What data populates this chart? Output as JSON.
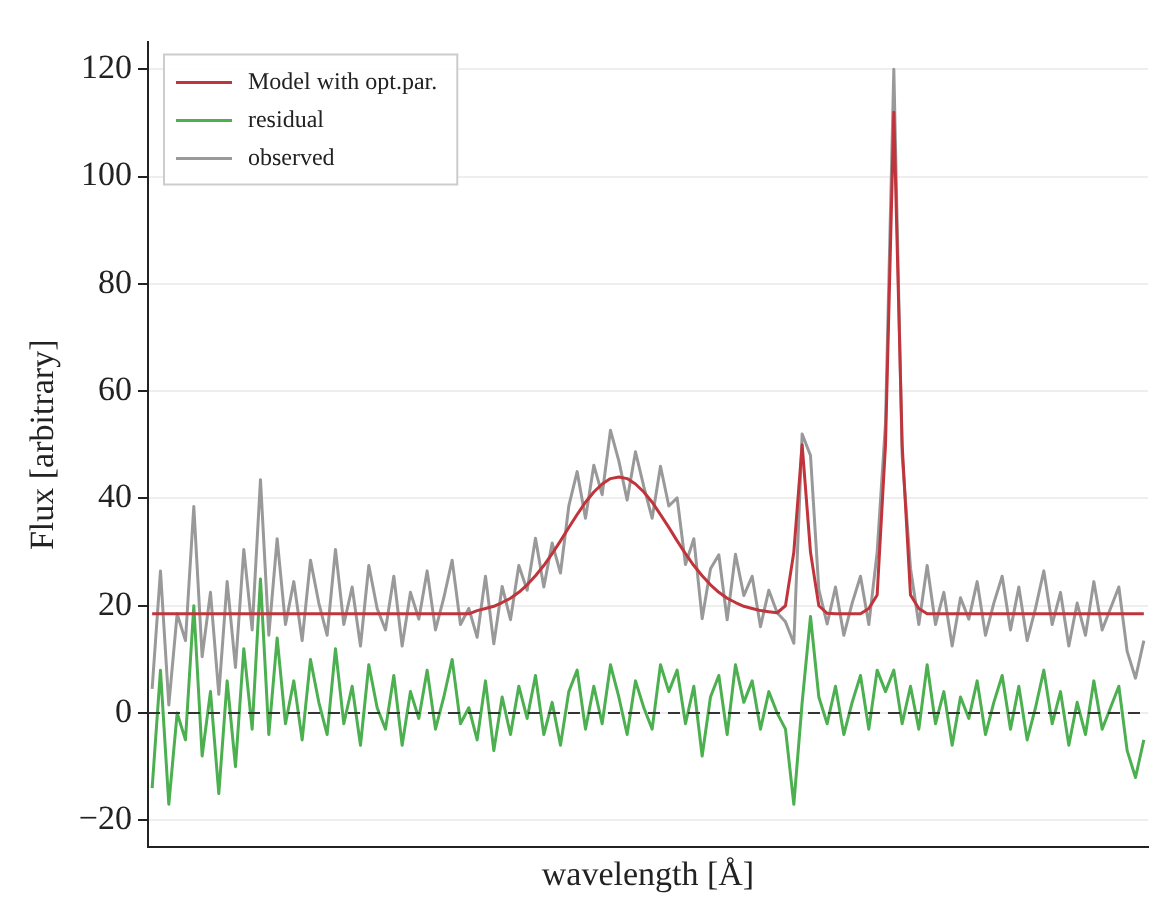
{
  "chart_data": {
    "type": "line",
    "xlabel": "wavelength [Å]",
    "ylabel": "Flux [arbitrary]",
    "categories": [
      null,
      null,
      null,
      null,
      null,
      null,
      null,
      null,
      null,
      null,
      null,
      null,
      null,
      null,
      null,
      null,
      null,
      null,
      null,
      null,
      null,
      null,
      null,
      null,
      null,
      null,
      null,
      null,
      null,
      null,
      null,
      null,
      null,
      null,
      null,
      null,
      null,
      null,
      null,
      null,
      null,
      null,
      null,
      null,
      null,
      null,
      null,
      null,
      null,
      null,
      null,
      null,
      null,
      null,
      null,
      null,
      null,
      null,
      null,
      null,
      null,
      null,
      null,
      null,
      null,
      null,
      null,
      null,
      null,
      null,
      null,
      null,
      null,
      null,
      null,
      null,
      null,
      null,
      null,
      null,
      null,
      null,
      null,
      null,
      null,
      null,
      null,
      null,
      null,
      null,
      null,
      null,
      null,
      null,
      null,
      null,
      null,
      null,
      null,
      null,
      null,
      null,
      null,
      null,
      null,
      null,
      null,
      null,
      null,
      null,
      null,
      null,
      null,
      null,
      null,
      null,
      null,
      null,
      null,
      null
    ],
    "series": [
      {
        "name": "Model with opt.par.",
        "color": "#c0343c",
        "values": [
          18.5,
          18.5,
          18.5,
          18.5,
          18.5,
          18.5,
          18.5,
          18.5,
          18.5,
          18.5,
          18.5,
          18.5,
          18.5,
          18.5,
          18.5,
          18.5,
          18.5,
          18.5,
          18.5,
          18.5,
          18.5,
          18.5,
          18.5,
          18.5,
          18.5,
          18.5,
          18.5,
          18.5,
          18.5,
          18.5,
          18.5,
          18.5,
          18.5,
          18.5,
          18.5,
          18.5,
          18.5,
          18.5,
          18.5,
          19.1,
          19.5,
          19.9,
          20.6,
          21.4,
          22.5,
          23.9,
          25.6,
          27.5,
          29.7,
          32.1,
          34.6,
          37.0,
          39.3,
          41.2,
          42.7,
          43.7,
          44,
          43.7,
          42.7,
          41.2,
          39.3,
          37.0,
          34.6,
          32.1,
          29.7,
          27.5,
          25.6,
          23.9,
          22.5,
          21.4,
          20.6,
          19.9,
          19.5,
          19.1,
          18.9,
          18.7,
          20,
          30,
          50,
          30,
          20,
          18.6,
          18.5,
          18.5,
          18.5,
          18.5,
          19.5,
          22,
          50,
          112,
          50,
          22,
          19.5,
          18.5,
          18.5,
          18.5,
          18.5,
          18.5,
          18.5,
          18.5,
          18.5,
          18.5,
          18.5,
          18.5,
          18.5,
          18.5,
          18.5,
          18.5,
          18.5,
          18.5,
          18.5,
          18.5,
          18.5,
          18.5,
          18.5,
          18.5,
          18.5,
          18.5,
          18.5,
          18.5
        ]
      },
      {
        "name": "residual",
        "color": "#4caf50",
        "values": [
          -14,
          8,
          -17,
          0,
          -5,
          20,
          -8,
          4,
          -15,
          6,
          -10,
          12,
          -3,
          25,
          -4,
          14,
          -2,
          6,
          -5,
          10,
          2,
          -4,
          12,
          -2,
          5,
          -6,
          9,
          1,
          -3,
          7,
          -6,
          4,
          -1,
          8,
          -3,
          3,
          10,
          -2,
          1,
          -5,
          6,
          -7,
          3,
          -4,
          5,
          -1,
          7,
          -4,
          2,
          -6,
          4,
          8,
          -3,
          5,
          -2,
          9,
          3,
          -4,
          6,
          1,
          -3,
          9,
          4,
          8,
          -2,
          5,
          -8,
          3,
          7,
          -4,
          9,
          2,
          6,
          -3,
          4,
          0,
          -3,
          -17,
          2,
          18,
          3,
          -2,
          5,
          -4,
          2,
          7,
          -3,
          8,
          4,
          8,
          -2,
          5,
          -3,
          9,
          -2,
          4,
          -6,
          3,
          -1,
          6,
          -4,
          2,
          7,
          -3,
          5,
          -5,
          1,
          8,
          -2,
          4,
          -6,
          2,
          -4,
          6,
          -3,
          1,
          5,
          -7,
          -12,
          -5
        ]
      },
      {
        "name": "observed",
        "color": "#999999",
        "values": [
          4.5,
          26.5,
          1.5,
          18.5,
          13.5,
          38.5,
          10.5,
          22.5,
          3.5,
          24.5,
          8.5,
          30.5,
          15.5,
          43.5,
          14.5,
          32.5,
          16.5,
          24.5,
          13.5,
          28.5,
          20.5,
          14.5,
          30.5,
          16.5,
          23.5,
          12.5,
          27.5,
          19.5,
          15.5,
          25.5,
          12.5,
          22.5,
          17.5,
          26.5,
          15.5,
          21.5,
          28.5,
          16.5,
          19.5,
          14.1,
          25.5,
          12.9,
          23.6,
          17.4,
          27.5,
          22.9,
          32.6,
          23.5,
          31.7,
          26.1,
          38.6,
          45,
          36.3,
          46.2,
          40.7,
          52.7,
          47,
          39.7,
          48.7,
          42.2,
          36.3,
          46,
          38.6,
          40.1,
          27.7,
          32.5,
          17.6,
          26.9,
          29.5,
          17.4,
          29.6,
          21.9,
          25.5,
          16.1,
          22.9,
          18.7,
          17,
          13,
          52,
          48,
          23,
          16.6,
          23.5,
          14.5,
          20.5,
          25.5,
          16.5,
          30,
          54,
          120,
          48,
          27,
          16.5,
          27.5,
          16.5,
          22.5,
          12.5,
          21.5,
          17.5,
          24.5,
          14.5,
          20.5,
          25.5,
          15.5,
          23.5,
          13.5,
          19.5,
          26.5,
          16.5,
          22.5,
          12.5,
          20.5,
          14.5,
          24.5,
          15.5,
          19.5,
          23.5,
          11.5,
          6.5,
          13.5
        ]
      }
    ],
    "ylim": [
      -25,
      125
    ],
    "yticks": [
      -20,
      0,
      20,
      40,
      60,
      80,
      100,
      120
    ],
    "ref_lines": [
      {
        "axis": "y",
        "value": 0,
        "color": "#333333",
        "line_style": "dashed"
      }
    ],
    "grid": "y",
    "legend": "top left",
    "tick_labels": "y",
    "marker": "none",
    "line_style": "solid"
  }
}
